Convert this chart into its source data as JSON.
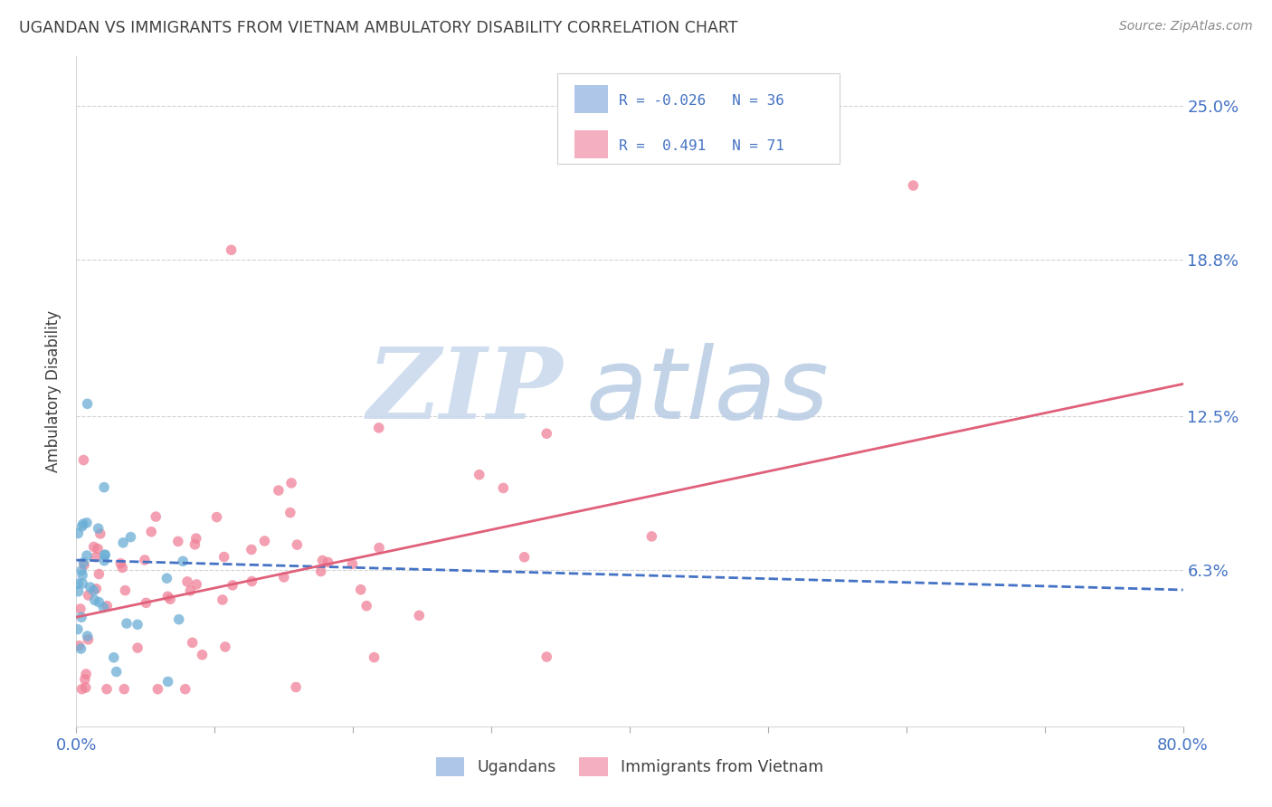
{
  "title": "UGANDAN VS IMMIGRANTS FROM VIETNAM AMBULATORY DISABILITY CORRELATION CHART",
  "source": "Source: ZipAtlas.com",
  "ylabel": "Ambulatory Disability",
  "ytick_labels": [
    "6.3%",
    "12.5%",
    "18.8%",
    "25.0%"
  ],
  "ytick_values": [
    0.063,
    0.125,
    0.188,
    0.25
  ],
  "xlim": [
    0.0,
    0.8
  ],
  "ylim": [
    0.0,
    0.27
  ],
  "ugandan_color": "#6baed6",
  "vietnam_color": "#f08098",
  "ugandan_line_color": "#4472c4",
  "vietnam_line_color": "#e0607a",
  "background_color": "#ffffff",
  "grid_color": "#c8c8c8",
  "title_color": "#404040",
  "axis_label_color": "#4472c4",
  "watermark_zip_color": "#c8d8ec",
  "watermark_atlas_color": "#b8cce4",
  "legend_box_color": "#e8e8e8",
  "ug_trend_x0": 0.0,
  "ug_trend_y0": 0.067,
  "ug_trend_x1": 0.8,
  "ug_trend_y1": 0.055,
  "vn_trend_x0": 0.0,
  "vn_trend_y0": 0.044,
  "vn_trend_x1": 0.8,
  "vn_trend_y1": 0.138
}
